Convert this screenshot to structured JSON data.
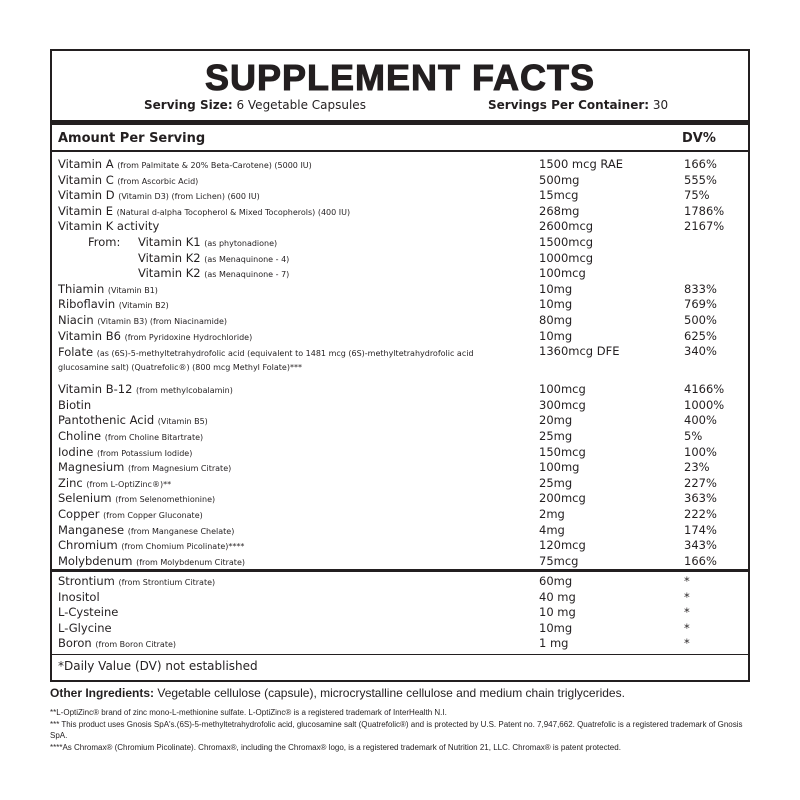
{
  "title": "SUPPLEMENT FACTS",
  "serving_size_label": "Serving Size:",
  "serving_size_value": "6 Vegetable Capsules",
  "servings_per_container_label": "Servings Per Container:",
  "servings_per_container_value": "30",
  "header": {
    "amount": "Amount Per Serving",
    "dv": "DV%"
  },
  "from_label": "From:",
  "rows": [
    {
      "name": "Vitamin A",
      "detail": "(from Palmitate & 20% Beta-Carotene) (5000 IU)",
      "amount": "1500 mcg RAE",
      "dv": "166%"
    },
    {
      "name": "Vitamin C",
      "detail": "(from Ascorbic Acid)",
      "amount": "500mg",
      "dv": "555%"
    },
    {
      "name": "Vitamin D",
      "detail": "(Vitamin D3) (from Lichen) (600 IU)",
      "amount": "15mcg",
      "dv": "75%"
    },
    {
      "name": "Vitamin E",
      "detail": "(Natural d-alpha Tocopherol & Mixed Tocopherols) (400 IU)",
      "amount": "268mg",
      "dv": "1786%"
    },
    {
      "name": "Vitamin K activity",
      "detail": "",
      "amount": "2600mcg",
      "dv": "2167%"
    },
    {
      "name": "Vitamin K1",
      "detail": "(as phytonadione)",
      "amount": "1500mcg",
      "dv": "",
      "sub": true,
      "from": true
    },
    {
      "name": "Vitamin K2",
      "detail": "(as Menaquinone - 4)",
      "amount": "1000mcg",
      "dv": "",
      "sub": true
    },
    {
      "name": "Vitamin K2",
      "detail": "(as Menaquinone - 7)",
      "amount": "100mcg",
      "dv": "",
      "sub": true
    },
    {
      "name": "Thiamin",
      "detail": "(Vitamin B1)",
      "amount": "10mg",
      "dv": "833%"
    },
    {
      "name": "Riboflavin",
      "detail": "(Vitamin B2)",
      "amount": "10mg",
      "dv": "769%"
    },
    {
      "name": "Niacin",
      "detail": "(Vitamin B3) (from Niacinamide)",
      "amount": "80mg",
      "dv": "500%"
    },
    {
      "name": "Vitamin B6",
      "detail": "(from Pyridoxine Hydrochloride)",
      "amount": "10mg",
      "dv": "625%"
    },
    {
      "name": "Folate",
      "detail": "(as (6S)-5-methyltetrahydrofolic acid (equivalent to 1481 mcg (6S)-methyltetrahydrofolic acid glucosamine salt) (Quatrefolic®) (800  mcg Methyl Folate)***",
      "amount": "1360mcg DFE",
      "dv": "340%",
      "tall": true
    },
    {
      "name": "Vitamin B-12",
      "detail": "(from methylcobalamin)",
      "amount": "100mcg",
      "dv": "4166%"
    },
    {
      "name": "Biotin",
      "detail": "",
      "amount": "300mcg",
      "dv": "1000%"
    },
    {
      "name": "Pantothenic Acid",
      "detail": "(Vitamin B5)",
      "amount": "20mg",
      "dv": "400%"
    },
    {
      "name": "Choline",
      "detail": "(from Choline Bitartrate)",
      "amount": "25mg",
      "dv": "5%"
    },
    {
      "name": "Iodine",
      "detail": "(from Potassium Iodide)",
      "amount": "150mcg",
      "dv": "100%"
    },
    {
      "name": "Magnesium",
      "detail": "(from Magnesium Citrate)",
      "amount": "100mg",
      "dv": "23%"
    },
    {
      "name": "Zinc",
      "detail": "(from L-OptiZinc®)**",
      "amount": "25mg",
      "dv": "227%"
    },
    {
      "name": "Selenium",
      "detail": "(from Selenomethionine)",
      "amount": "200mcg",
      "dv": "363%"
    },
    {
      "name": "Copper",
      "detail": "(from Copper Gluconate)",
      "amount": "2mg",
      "dv": "222%"
    },
    {
      "name": "Manganese",
      "detail": "(from Manganese Chelate)",
      "amount": "4mg",
      "dv": "174%"
    },
    {
      "name": "Chromium",
      "detail": "(from Chomium Picolinate)****",
      "amount": "120mcg",
      "dv": "343%"
    },
    {
      "name": "Molybdenum",
      "detail": "(from Molybdenum Citrate)",
      "amount": "75mcg",
      "dv": "166%"
    }
  ],
  "rows2": [
    {
      "name": "Strontium",
      "detail": "(from Strontium Citrate)",
      "amount": "60mg",
      "dv": "*"
    },
    {
      "name": "Inositol",
      "detail": "",
      "amount": "40 mg",
      "dv": "*"
    },
    {
      "name": "L-Cysteine",
      "detail": "",
      "amount": "10 mg",
      "dv": "*"
    },
    {
      "name": "L-Glycine",
      "detail": "",
      "amount": "10mg",
      "dv": "*"
    },
    {
      "name": "Boron",
      "detail": "(from Boron Citrate)",
      "amount": "1 mg",
      "dv": "*"
    }
  ],
  "dv_note": "*Daily Value (DV) not established",
  "other_ingredients_label": "Other Ingredients:",
  "other_ingredients": "Vegetable cellulose (capsule), microcrystalline cellulose and medium chain triglycerides.",
  "footnotes": [
    "**L-OptiZinc® brand of zinc mono-L-methionine sulfate. L-OptiZinc®  is a registered trademark of InterHealth N.I.",
    "*** This product uses Gnosis SpA's.(6S)-5-methyltetrahydrofolic acid, glucosamine salt (Quatrefolic®) and is protected by U.S. Patent no. 7,947,662. Quatrefolic is a registered trademark of Gnosis SpA.",
    "****As Chromax® (Chromium Picolinate). Chromax®, including the Chromax® logo, is a registered trademark of Nutrition 21, LLC. Chromax® is patent protected."
  ]
}
